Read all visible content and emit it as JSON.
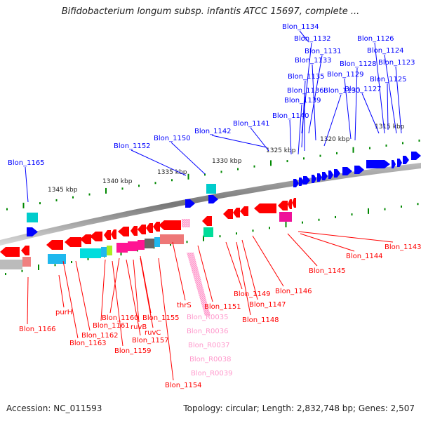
{
  "title": "Bifidobacterium longum subsp. infantis ATCC 15697, complete ...",
  "footer": {
    "accession": "Accession: NC_011593",
    "summary": "Topology: circular; Length: 2,832,748 bp; Genes: 2,507"
  },
  "colors": {
    "forward_gene": "#0000ff",
    "reverse_gene": "#ff0000",
    "rna_gene": "#ff99cc",
    "tick": "#008800",
    "backbone": "#777777"
  },
  "kbp_labels": [
    "1345 kbp",
    "1340 kbp",
    "1335 kbp",
    "1330 kbp",
    "1325 kbp",
    "1320 kbp",
    "1315 kbp"
  ],
  "forward_labels": [
    {
      "text": "Blon_1134"
    },
    {
      "text": "Blon_1132"
    },
    {
      "text": "Blon_1126"
    },
    {
      "text": "Blon_1131"
    },
    {
      "text": "Blon_1124"
    },
    {
      "text": "Blon_1133"
    },
    {
      "text": "Blon_1128"
    },
    {
      "text": "Blon_1123"
    },
    {
      "text": "Blon_1135"
    },
    {
      "text": "Blon_1129"
    },
    {
      "text": "Blon_1125"
    },
    {
      "text": "Blon_1136"
    },
    {
      "text": "Blon_1130"
    },
    {
      "text": "Blon_1127"
    },
    {
      "text": "Blon_1139"
    },
    {
      "text": "Blon_1140"
    },
    {
      "text": "Blon_1141"
    },
    {
      "text": "Blon_1142"
    },
    {
      "text": "Blon_1150"
    },
    {
      "text": "Blon_1152"
    },
    {
      "text": "Blon_1165"
    }
  ],
  "reverse_labels": [
    {
      "text": "Blon_1143"
    },
    {
      "text": "Blon_1144"
    },
    {
      "text": "Blon_1145"
    },
    {
      "text": "Blon_1146"
    },
    {
      "text": "Blon_1149"
    },
    {
      "text": "Blon_1147"
    },
    {
      "text": "Blon_1148"
    },
    {
      "text": "Blon_1151"
    },
    {
      "text": "thrS"
    },
    {
      "text": "Blon_1155"
    },
    {
      "text": "Blon_1160"
    },
    {
      "text": "Blon_1161"
    },
    {
      "text": "ruvB"
    },
    {
      "text": "ruvC"
    },
    {
      "text": "Blon_1157"
    },
    {
      "text": "Blon_1159"
    },
    {
      "text": "Blon_1162"
    },
    {
      "text": "Blon_1163"
    },
    {
      "text": "purH"
    },
    {
      "text": "Blon_1166"
    },
    {
      "text": "Blon_1154"
    }
  ],
  "rna_labels": [
    {
      "text": "Blon_R0035"
    },
    {
      "text": "Blon_R0036"
    },
    {
      "text": "Blon_R0037"
    },
    {
      "text": "Blon_R0038"
    },
    {
      "text": "Blon_R0039"
    }
  ]
}
